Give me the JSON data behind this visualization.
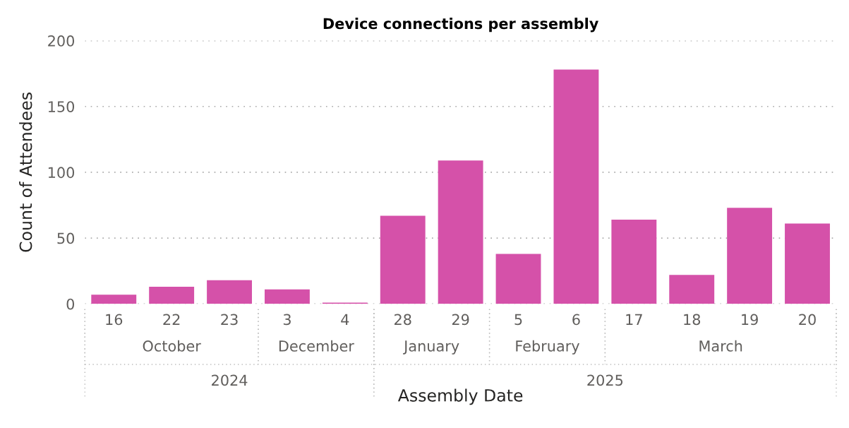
{
  "chart_data": {
    "type": "bar",
    "title": "Device connections per assembly",
    "xlabel": "Assembly Date",
    "ylabel": "Count of Attendees",
    "categories": [
      "16",
      "22",
      "23",
      "3",
      "4",
      "28",
      "29",
      "5",
      "6",
      "17",
      "18",
      "19",
      "20"
    ],
    "values": [
      7,
      13,
      18,
      11,
      1,
      67,
      109,
      38,
      178,
      64,
      22,
      73,
      61
    ],
    "color": "#d551a9",
    "ylim": [
      0,
      200
    ],
    "yticks": [
      0,
      50,
      100,
      150,
      200
    ],
    "grid": "y",
    "annotations": [
      "October",
      "December",
      "January",
      "February",
      "March",
      "2024",
      "2025"
    ]
  }
}
